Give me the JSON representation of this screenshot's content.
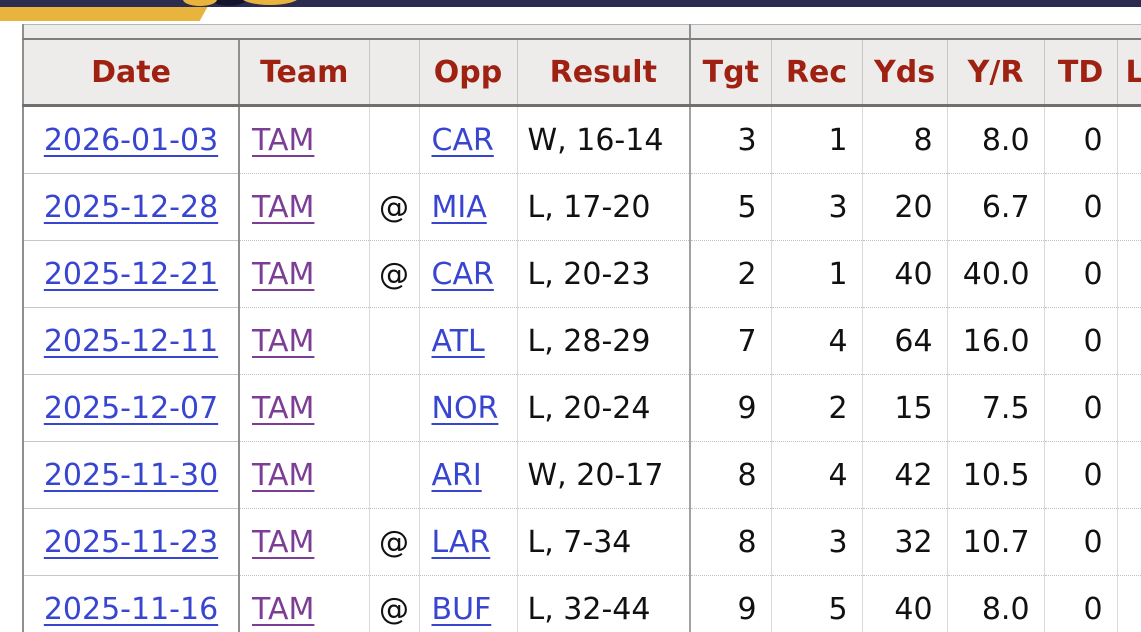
{
  "site_header": {
    "navy_color": "#2c2b50",
    "gold_color": "#e9b43d"
  },
  "stats_table": {
    "header_text_color": "#9e2112",
    "header_bg": "#edecea",
    "link_blue": "#3845d1",
    "link_visited_purple": "#7c3e95",
    "columns": [
      {
        "key": "date",
        "label": "Date"
      },
      {
        "key": "team",
        "label": "Team"
      },
      {
        "key": "at",
        "label": ""
      },
      {
        "key": "opp",
        "label": "Opp"
      },
      {
        "key": "result",
        "label": "Result"
      },
      {
        "key": "tgt",
        "label": "Tgt"
      },
      {
        "key": "rec",
        "label": "Rec"
      },
      {
        "key": "yds",
        "label": "Yds"
      },
      {
        "key": "yr",
        "label": "Y/R"
      },
      {
        "key": "td",
        "label": "TD"
      },
      {
        "key": "lng",
        "label": "L"
      }
    ],
    "rows": [
      {
        "date": "2026-01-03",
        "team": "TAM",
        "at": "",
        "opp": "CAR",
        "result": "W, 16-14",
        "tgt": "3",
        "rec": "1",
        "yds": "8",
        "yr": "8.0",
        "td": "0",
        "lng": ""
      },
      {
        "date": "2025-12-28",
        "team": "TAM",
        "at": "@",
        "opp": "MIA",
        "result": "L, 17-20",
        "tgt": "5",
        "rec": "3",
        "yds": "20",
        "yr": "6.7",
        "td": "0",
        "lng": ""
      },
      {
        "date": "2025-12-21",
        "team": "TAM",
        "at": "@",
        "opp": "CAR",
        "result": "L, 20-23",
        "tgt": "2",
        "rec": "1",
        "yds": "40",
        "yr": "40.0",
        "td": "0",
        "lng": ""
      },
      {
        "date": "2025-12-11",
        "team": "TAM",
        "at": "",
        "opp": "ATL",
        "result": "L, 28-29",
        "tgt": "7",
        "rec": "4",
        "yds": "64",
        "yr": "16.0",
        "td": "0",
        "lng": ""
      },
      {
        "date": "2025-12-07",
        "team": "TAM",
        "at": "",
        "opp": "NOR",
        "result": "L, 20-24",
        "tgt": "9",
        "rec": "2",
        "yds": "15",
        "yr": "7.5",
        "td": "0",
        "lng": ""
      },
      {
        "date": "2025-11-30",
        "team": "TAM",
        "at": "",
        "opp": "ARI",
        "result": "W, 20-17",
        "tgt": "8",
        "rec": "4",
        "yds": "42",
        "yr": "10.5",
        "td": "0",
        "lng": ""
      },
      {
        "date": "2025-11-23",
        "team": "TAM",
        "at": "@",
        "opp": "LAR",
        "result": "L, 7-34",
        "tgt": "8",
        "rec": "3",
        "yds": "32",
        "yr": "10.7",
        "td": "0",
        "lng": ""
      },
      {
        "date": "2025-11-16",
        "team": "TAM",
        "at": "@",
        "opp": "BUF",
        "result": "L, 32-44",
        "tgt": "9",
        "rec": "5",
        "yds": "40",
        "yr": "8.0",
        "td": "0",
        "lng": ""
      }
    ]
  }
}
